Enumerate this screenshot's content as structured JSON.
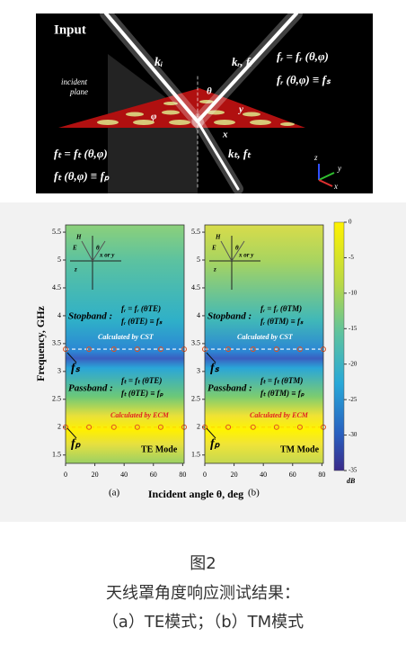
{
  "diagram": {
    "title": "Input",
    "labels": [
      "kᵢ",
      "kᵣ, fᵣ",
      "fᵣ = fᵣ (θ,φ)",
      "fᵣ (θ,φ) ≡ fₛ",
      "incident",
      "plane",
      "θ",
      "φ",
      "y",
      "x",
      "fₜ = fₜ (θ,φ)",
      "fₜ (θ,φ) ≡ fₚ",
      "kₜ, fₜ",
      "z",
      "y",
      "x"
    ]
  },
  "plots": [
    {
      "mode": "TE Mode",
      "panel": "(a)",
      "stopband": [
        "fᵣ = fᵣ (θTE)",
        "fᵣ (θTE) ≡ fₛ"
      ],
      "passband": [
        "fₜ = fₜ (θTE)",
        "fₜ (θTE) ≡ fₚ"
      ]
    },
    {
      "mode": "TM Mode",
      "panel": "(b)",
      "stopband": [
        "fᵣ = fᵣ (θTM)",
        "fᵣ (θTM) ≡ fₛ"
      ],
      "passband": [
        "fₜ = fₜ (θTM)",
        "fₜ (θTM) ≡ fₚ"
      ]
    }
  ],
  "common": {
    "stopband_label": "Stopband :",
    "passband_label": "Passband :",
    "cst": "Calculated by CST",
    "ecm": "Calculated by ECM",
    "fs": "fₛ",
    "fp": "fₚ",
    "inset": [
      "H",
      "E",
      "θ",
      "z",
      "x or y"
    ],
    "xlabel": "Incident angle θ, deg",
    "ylabel": "Frequency, GHz",
    "xlim": [
      0,
      81
    ],
    "xticks": [
      0,
      20,
      40,
      60,
      80
    ],
    "ylim": [
      1.35,
      5.63
    ],
    "yticks": [
      1.5,
      2,
      2.5,
      3,
      3.5,
      4,
      4.5,
      5,
      5.5
    ],
    "cst_points": {
      "x": [
        0,
        16,
        33,
        49,
        65,
        81
      ],
      "y": [
        3.4,
        3.4,
        3.4,
        3.4,
        3.4,
        3.4
      ]
    },
    "ecm_points": {
      "x": [
        0,
        16,
        33,
        49,
        65,
        81
      ],
      "y": [
        2,
        2,
        2,
        2,
        2,
        2
      ]
    },
    "colorbar": {
      "unit": "dB",
      "lim": [
        0,
        -35
      ],
      "ticks": [
        0,
        -5,
        -10,
        -15,
        -20,
        -25,
        -30,
        -35
      ]
    }
  },
  "caption": {
    "figure": "图2",
    "line1": "天线罩角度响应测试结果：",
    "line2": "（a）TE模式；（b）TM模式"
  }
}
